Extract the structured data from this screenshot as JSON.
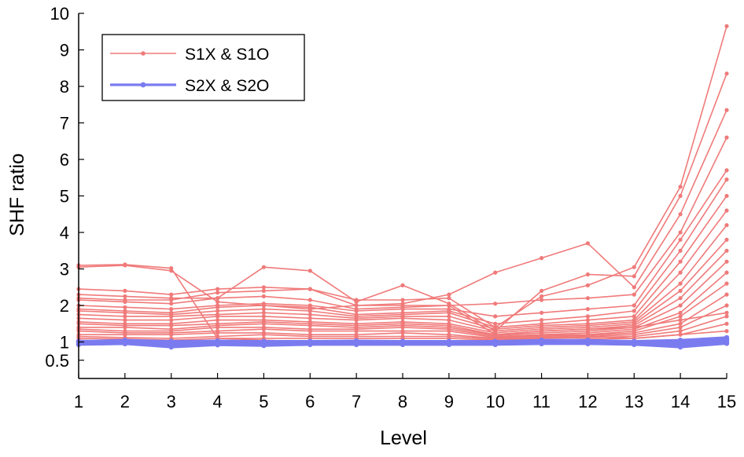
{
  "chart_data": {
    "type": "line",
    "title": "",
    "xlabel": "Level",
    "ylabel": "SHF ratio",
    "x": [
      1,
      2,
      3,
      4,
      5,
      6,
      7,
      8,
      9,
      10,
      11,
      12,
      13,
      14,
      15
    ],
    "xlim": [
      1,
      15
    ],
    "ylim": [
      0,
      10
    ],
    "yticks": [
      0.5,
      1,
      2,
      3,
      4,
      5,
      6,
      7,
      8,
      9,
      10
    ],
    "ytick_labels": [
      "0.5",
      "1",
      "2",
      "3",
      "4",
      "5",
      "6",
      "7",
      "8",
      "9",
      "10"
    ],
    "xticks": [
      1,
      2,
      3,
      4,
      5,
      6,
      7,
      8,
      9,
      10,
      11,
      12,
      13,
      14,
      15
    ],
    "xtick_labels": [
      "1",
      "2",
      "3",
      "4",
      "5",
      "6",
      "7",
      "8",
      "9",
      "10",
      "11",
      "12",
      "13",
      "14",
      "15"
    ],
    "grid": false,
    "legend_position": "top-left",
    "legend": [
      "S1X & S1O",
      "S2X & S2O"
    ],
    "groups": [
      {
        "name": "S1X & S1O",
        "color": "#f07a7a",
        "series": [
          {
            "values": [
              3.1,
              3.12,
              3.02,
              1.1,
              1.05,
              1.0,
              1.0,
              1.0,
              1.0,
              1.05,
              1.1,
              1.15,
              1.1,
              1.2,
              1.3
            ]
          },
          {
            "values": [
              3.05,
              3.1,
              2.95,
              2.1,
              2.0,
              1.9,
              2.0,
              2.0,
              2.0,
              1.2,
              1.3,
              1.35,
              1.4,
              1.6,
              1.8
            ]
          },
          {
            "values": [
              2.45,
              2.4,
              2.3,
              2.45,
              2.5,
              2.45,
              2.15,
              2.15,
              2.2,
              1.4,
              2.25,
              2.55,
              3.05,
              5.25,
              9.65
            ]
          },
          {
            "values": [
              2.3,
              2.25,
              2.2,
              2.2,
              3.05,
              2.95,
              2.1,
              2.55,
              2.05,
              1.3,
              2.4,
              2.85,
              2.8,
              5.0,
              8.35
            ]
          },
          {
            "values": [
              2.2,
              2.15,
              2.15,
              2.35,
              2.4,
              2.45,
              2.0,
              2.05,
              2.3,
              2.9,
              3.3,
              3.7,
              2.5,
              4.5,
              7.35
            ]
          },
          {
            "values": [
              2.15,
              2.1,
              2.05,
              2.2,
              2.25,
              2.15,
              1.9,
              1.95,
              2.0,
              2.05,
              2.15,
              2.2,
              2.3,
              4.0,
              6.6
            ]
          },
          {
            "values": [
              2.0,
              1.95,
              1.9,
              2.0,
              2.05,
              2.0,
              1.85,
              1.9,
              1.9,
              1.7,
              1.8,
              1.9,
              2.0,
              3.8,
              5.7
            ]
          },
          {
            "values": [
              1.9,
              1.85,
              1.8,
              1.95,
              2.0,
              1.95,
              1.75,
              1.8,
              1.85,
              1.5,
              1.6,
              1.7,
              1.85,
              3.5,
              5.45
            ]
          },
          {
            "values": [
              1.85,
              1.8,
              1.75,
              1.85,
              1.9,
              1.85,
              1.7,
              1.75,
              1.8,
              1.4,
              1.5,
              1.6,
              1.7,
              3.2,
              5.0
            ]
          },
          {
            "values": [
              1.75,
              1.7,
              1.7,
              1.75,
              1.8,
              1.75,
              1.65,
              1.7,
              1.7,
              1.35,
              1.45,
              1.5,
              1.6,
              2.9,
              4.6
            ]
          },
          {
            "values": [
              1.65,
              1.6,
              1.6,
              1.7,
              1.7,
              1.65,
              1.6,
              1.65,
              1.6,
              1.3,
              1.4,
              1.45,
              1.55,
              2.6,
              4.2
            ]
          },
          {
            "values": [
              1.55,
              1.5,
              1.5,
              1.6,
              1.6,
              1.55,
              1.5,
              1.55,
              1.5,
              1.25,
              1.35,
              1.4,
              1.5,
              2.4,
              3.8
            ]
          },
          {
            "values": [
              1.5,
              1.45,
              1.45,
              1.5,
              1.55,
              1.5,
              1.45,
              1.5,
              1.45,
              1.2,
              1.3,
              1.35,
              1.45,
              2.2,
              3.5
            ]
          },
          {
            "values": [
              1.4,
              1.4,
              1.35,
              1.45,
              1.5,
              1.45,
              1.4,
              1.45,
              1.4,
              1.18,
              1.25,
              1.3,
              1.4,
              2.0,
              3.2
            ]
          },
          {
            "values": [
              1.35,
              1.3,
              1.3,
              1.4,
              1.4,
              1.35,
              1.35,
              1.4,
              1.35,
              1.15,
              1.2,
              1.25,
              1.35,
              1.8,
              2.9
            ]
          },
          {
            "values": [
              1.3,
              1.25,
              1.25,
              1.3,
              1.35,
              1.3,
              1.3,
              1.3,
              1.3,
              1.12,
              1.18,
              1.2,
              1.3,
              1.7,
              2.6
            ]
          },
          {
            "values": [
              1.2,
              1.2,
              1.2,
              1.25,
              1.25,
              1.2,
              1.2,
              1.25,
              1.2,
              1.1,
              1.15,
              1.18,
              1.25,
              1.5,
              2.3
            ]
          },
          {
            "values": [
              1.15,
              1.12,
              1.1,
              1.15,
              1.2,
              1.15,
              1.15,
              1.15,
              1.15,
              1.08,
              1.12,
              1.15,
              1.2,
              1.4,
              2.0
            ]
          },
          {
            "values": [
              1.1,
              1.08,
              1.05,
              1.1,
              1.1,
              1.1,
              1.1,
              1.1,
              1.1,
              1.05,
              1.1,
              1.12,
              1.15,
              1.3,
              1.7
            ]
          },
          {
            "values": [
              1.05,
              1.02,
              1.0,
              0.95,
              0.92,
              1.0,
              1.0,
              0.95,
              1.0,
              1.0,
              1.05,
              1.08,
              1.1,
              1.2,
              1.5
            ]
          }
        ]
      },
      {
        "name": "S2X & S2O",
        "color": "#7b7bf0",
        "series": [
          {
            "values": [
              1.02,
              1.05,
              1.02,
              1.03,
              1.02,
              1.02,
              1.03,
              1.02,
              1.02,
              1.02,
              1.05,
              1.05,
              1.02,
              1.05,
              1.12
            ]
          },
          {
            "values": [
              1.0,
              1.02,
              1.0,
              1.0,
              1.0,
              1.0,
              1.0,
              1.0,
              1.0,
              1.0,
              1.02,
              1.02,
              1.0,
              1.0,
              1.08
            ]
          },
          {
            "values": [
              0.98,
              1.0,
              0.98,
              0.98,
              0.98,
              0.98,
              0.98,
              0.98,
              0.98,
              0.98,
              1.0,
              1.0,
              0.98,
              0.98,
              1.05
            ]
          },
          {
            "values": [
              0.96,
              0.98,
              0.96,
              0.96,
              0.96,
              0.96,
              0.96,
              0.96,
              0.96,
              0.96,
              0.98,
              0.98,
              0.96,
              0.95,
              1.02
            ]
          },
          {
            "values": [
              0.94,
              0.96,
              0.9,
              0.94,
              0.92,
              0.94,
              0.94,
              0.94,
              0.94,
              0.94,
              0.96,
              0.96,
              0.94,
              0.9,
              0.98
            ]
          },
          {
            "values": [
              0.93,
              0.95,
              0.86,
              0.92,
              0.9,
              0.93,
              0.93,
              0.93,
              0.93,
              0.93,
              0.95,
              0.95,
              0.93,
              0.86,
              0.96
            ]
          }
        ]
      }
    ]
  }
}
